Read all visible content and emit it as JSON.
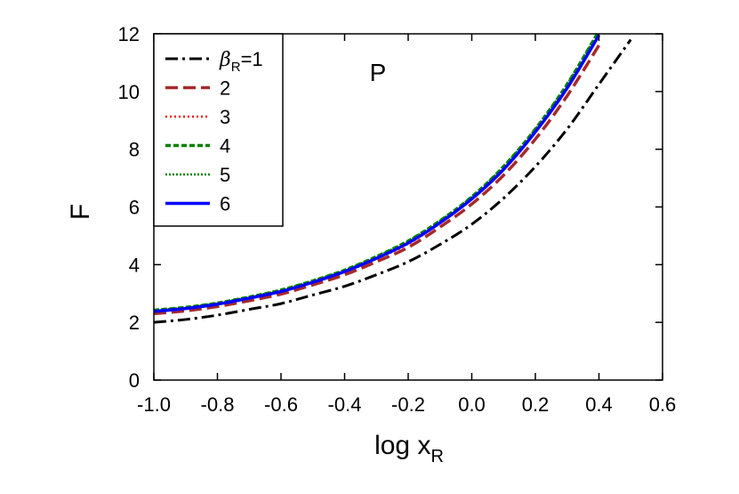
{
  "chart_data": {
    "type": "line",
    "xlabel": "log x",
    "xlabel_sub": "R",
    "ylabel": "F",
    "annotation": "P",
    "xlim": [
      -1.0,
      0.6
    ],
    "ylim": [
      0,
      12
    ],
    "x_ticks": [
      "-1.0",
      "-0.8",
      "-0.6",
      "-0.4",
      "-0.2",
      "0.0",
      "0.2",
      "0.4",
      "0.6"
    ],
    "y_ticks": [
      "0",
      "2",
      "4",
      "6",
      "8",
      "10",
      "12"
    ],
    "grid": false,
    "legend_position": "top-left",
    "legend_first": {
      "symbol": "β",
      "sub": "R",
      "suffix": "=1"
    },
    "x": [
      -1.0,
      -0.9,
      -0.8,
      -0.7,
      -0.6,
      -0.5,
      -0.4,
      -0.3,
      -0.2,
      -0.1,
      0.0,
      0.1,
      0.2,
      0.3,
      0.4,
      0.5,
      0.6
    ],
    "series": [
      {
        "name": "β_R=1",
        "label": "β_R=1",
        "color": "#000000",
        "dash": "14,5,3,5",
        "width": 3,
        "values": [
          2.0,
          2.1,
          2.25,
          2.45,
          2.65,
          2.95,
          3.25,
          3.65,
          4.1,
          4.7,
          5.4,
          6.3,
          7.4,
          8.7,
          10.25,
          11.8,
          null
        ]
      },
      {
        "name": "2",
        "label": "2",
        "color": "#a52a2a",
        "dash": "14,6",
        "width": 3.5,
        "values": [
          2.3,
          2.4,
          2.55,
          2.75,
          2.98,
          3.3,
          3.65,
          4.1,
          4.6,
          5.3,
          6.1,
          7.1,
          8.35,
          9.85,
          11.6,
          null,
          null
        ]
      },
      {
        "name": "3",
        "label": "3",
        "color": "#ff0000",
        "dash": "2,3",
        "width": 2.5,
        "values": [
          2.38,
          2.48,
          2.63,
          2.83,
          3.06,
          3.38,
          3.74,
          4.2,
          4.72,
          5.43,
          6.26,
          7.28,
          8.58,
          10.1,
          11.95,
          null,
          null
        ]
      },
      {
        "name": "4",
        "label": "4",
        "color": "#008000",
        "dash": "6,3",
        "width": 3.5,
        "values": [
          2.42,
          2.52,
          2.67,
          2.88,
          3.12,
          3.44,
          3.81,
          4.28,
          4.82,
          5.52,
          6.35,
          7.4,
          8.7,
          10.25,
          12.1,
          null,
          null
        ]
      },
      {
        "name": "5",
        "label": "5",
        "color": "#008000",
        "dash": "2,2",
        "width": 2.5,
        "values": [
          2.42,
          2.52,
          2.67,
          2.88,
          3.12,
          3.44,
          3.81,
          4.28,
          4.82,
          5.52,
          6.35,
          7.4,
          8.7,
          10.25,
          12.1,
          null,
          null
        ]
      },
      {
        "name": "6",
        "label": "6",
        "color": "#0000ff",
        "dash": "",
        "width": 3.5,
        "values": [
          2.38,
          2.48,
          2.63,
          2.84,
          3.07,
          3.39,
          3.76,
          4.22,
          4.75,
          5.45,
          6.28,
          7.3,
          8.6,
          10.12,
          11.95,
          null,
          null
        ]
      }
    ]
  }
}
